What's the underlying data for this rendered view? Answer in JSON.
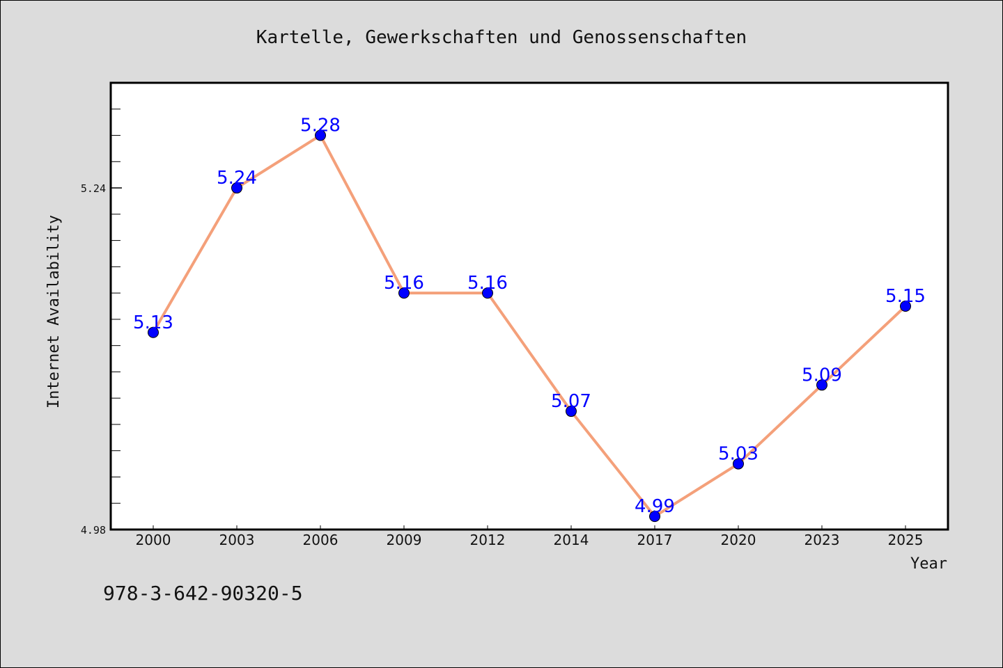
{
  "chart_data": {
    "type": "line",
    "title": "Kartelle, Gewerkschaften und Genossenschaften",
    "xlabel": "Year",
    "ylabel": "Internet Availability",
    "categories": [
      "2000",
      "2003",
      "2006",
      "2009",
      "2012",
      "2014",
      "2017",
      "2020",
      "2023",
      "2025"
    ],
    "series": [
      {
        "values": [
          5.13,
          5.24,
          5.28,
          5.16,
          5.16,
          5.07,
          4.99,
          5.03,
          5.09,
          5.15
        ]
      }
    ],
    "data_labels": [
      "5.13",
      "5.24",
      "5.28",
      "5.16",
      "5.16",
      "5.07",
      "4.99",
      "5.03",
      "5.09",
      "5.15"
    ],
    "ylim": [
      4.98,
      5.32
    ],
    "yticks": [
      4.98,
      5.24
    ],
    "ytick_labels": [
      "4.98",
      "5.24"
    ],
    "grid": false,
    "colors": {
      "line": "#f4a07a",
      "marker": "#0000ff",
      "data_label": "#0000ff",
      "background": "#dcdcdc",
      "plot_background": "#ffffff"
    }
  },
  "footer_text": "978-3-642-90320-5"
}
